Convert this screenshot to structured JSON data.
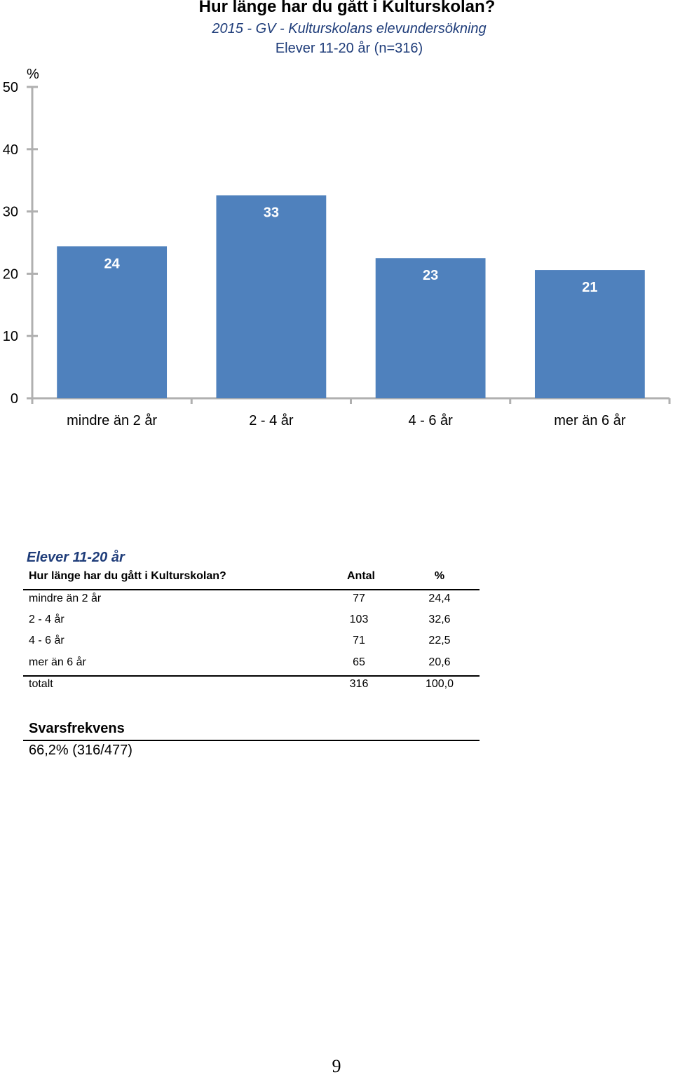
{
  "chart_data": {
    "type": "bar",
    "title": "Hur länge har du gått i Kulturskolan?",
    "subtitle": "2015 - GV - Kulturskolans elevundersökning",
    "subtitle2": "Elever 11-20 år (n=316)",
    "ylabel": "%",
    "ylim": [
      0,
      50
    ],
    "yticks": [
      "0",
      "10",
      "20",
      "30",
      "40",
      "50"
    ],
    "categories": [
      "mindre än 2 år",
      "2 - 4 år",
      "4 - 6 år",
      "mer än 6 år"
    ],
    "values": [
      24.4,
      32.6,
      22.5,
      20.6
    ],
    "data_labels": [
      "24",
      "33",
      "23",
      "21"
    ],
    "bar_color": "#4f81bd",
    "grid": false
  },
  "table": {
    "title": "Elever 11-20 år",
    "headers": [
      "Hur länge har du gått i Kulturskolan?",
      "Antal",
      "%"
    ],
    "rows": [
      [
        "mindre än 2 år",
        "77",
        "24,4"
      ],
      [
        "2 - 4 år",
        "103",
        "32,6"
      ],
      [
        "4 - 6 år",
        "71",
        "22,5"
      ],
      [
        "mer än 6 år",
        "65",
        "20,6"
      ]
    ],
    "total": [
      "totalt",
      "316",
      "100,0"
    ]
  },
  "response_rate": {
    "label": "Svarsfrekvens",
    "value": "66,2% (316/477)"
  },
  "page_number": "9"
}
